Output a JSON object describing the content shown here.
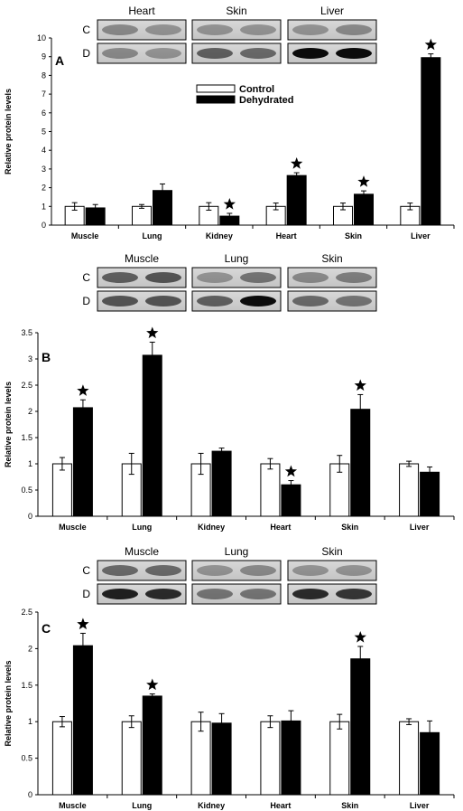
{
  "legend": {
    "control": "Control",
    "dehydrated": "Dehydrated"
  },
  "colors": {
    "control": "#ffffff",
    "dehydrated": "#000000",
    "axis": "#000000"
  },
  "blot_row_labels": [
    "C",
    "D"
  ],
  "chart_data": [
    {
      "type": "bar",
      "panel": "A",
      "ylabel": "Relative protein levels",
      "ylim": [
        0,
        10
      ],
      "yticks": [
        "0",
        "1",
        "2",
        "3",
        "4",
        "5",
        "6",
        "7",
        "8",
        "9",
        "10"
      ],
      "categories": [
        "Muscle",
        "Lung",
        "Kidney",
        "Heart",
        "Skin",
        "Liver"
      ],
      "series": [
        {
          "name": "Control",
          "values": [
            1.0,
            1.0,
            1.0,
            1.0,
            1.0,
            1.0
          ],
          "errors": [
            0.2,
            0.1,
            0.2,
            0.18,
            0.18,
            0.18
          ]
        },
        {
          "name": "Dehydrated",
          "values": [
            0.92,
            1.85,
            0.48,
            2.65,
            1.65,
            8.95
          ],
          "errors": [
            0.18,
            0.35,
            0.15,
            0.15,
            0.18,
            0.2
          ]
        }
      ],
      "significant": [
        false,
        false,
        true,
        true,
        true,
        true
      ],
      "legend_visible": true,
      "blots": [
        "Heart",
        "Skin",
        "Liver"
      ]
    },
    {
      "type": "bar",
      "panel": "B",
      "ylabel": "Relative protein levels",
      "ylim": [
        0,
        3.5
      ],
      "yticks": [
        "0",
        "0.5",
        "1",
        "1.5",
        "2",
        "2.5",
        "3",
        "3.5"
      ],
      "categories": [
        "Muscle",
        "Lung",
        "Kidney",
        "Heart",
        "Skin",
        "Liver"
      ],
      "series": [
        {
          "name": "Control",
          "values": [
            1.0,
            1.0,
            1.0,
            1.0,
            1.0,
            1.0
          ],
          "errors": [
            0.12,
            0.2,
            0.2,
            0.1,
            0.16,
            0.05
          ]
        },
        {
          "name": "Dehydrated",
          "values": [
            2.07,
            3.07,
            1.24,
            0.6,
            2.04,
            0.84
          ],
          "errors": [
            0.15,
            0.25,
            0.06,
            0.08,
            0.28,
            0.1
          ]
        }
      ],
      "significant": [
        true,
        true,
        false,
        true,
        true,
        false
      ],
      "legend_visible": false,
      "blots": [
        "Muscle",
        "Lung",
        "Skin"
      ]
    },
    {
      "type": "bar",
      "panel": "C",
      "ylabel": "Relative protein levels",
      "ylim": [
        0,
        2.5
      ],
      "yticks": [
        "0",
        "0.5",
        "1",
        "1.5",
        "2",
        "2.5"
      ],
      "categories": [
        "Muscle",
        "Lung",
        "Kidney",
        "Heart",
        "Skin",
        "Liver"
      ],
      "series": [
        {
          "name": "Control",
          "values": [
            1.0,
            1.0,
            1.0,
            1.0,
            1.0,
            1.0
          ],
          "errors": [
            0.07,
            0.08,
            0.13,
            0.08,
            0.1,
            0.04
          ]
        },
        {
          "name": "Dehydrated",
          "values": [
            2.04,
            1.35,
            0.98,
            1.01,
            1.86,
            0.85
          ],
          "errors": [
            0.17,
            0.03,
            0.13,
            0.14,
            0.17,
            0.16
          ]
        }
      ],
      "significant": [
        true,
        true,
        false,
        false,
        true,
        false
      ],
      "legend_visible": false,
      "blots": [
        "Muscle",
        "Lung",
        "Skin"
      ]
    }
  ]
}
